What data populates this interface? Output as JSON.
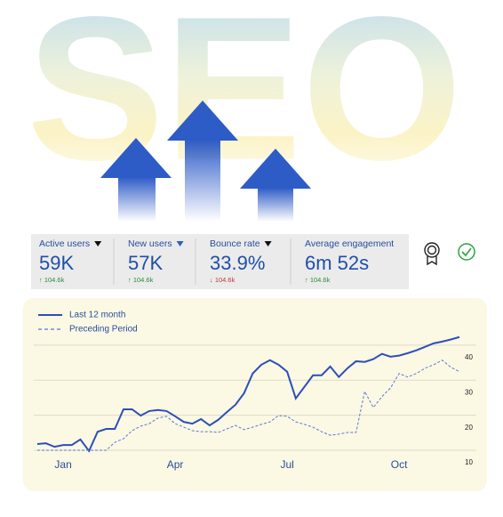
{
  "header": {
    "title": "SEO"
  },
  "metrics": [
    {
      "label": "Active users",
      "value": "59K",
      "change": "↑ 104.6k",
      "trend": "up",
      "caret_color": "#111111"
    },
    {
      "label": "New users",
      "value": "57K",
      "change": "↑ 104.6k",
      "trend": "up",
      "caret_color": "#2f5fc9"
    },
    {
      "label": "Bounce rate",
      "value": "33.9%",
      "change": "↓ 104.6k",
      "trend": "down",
      "caret_color": "#111111"
    },
    {
      "label": "Average engagement",
      "value": "6m 52s",
      "change": "↑ 104.6k",
      "trend": "up",
      "caret_color": null
    }
  ],
  "chart_data": {
    "type": "line",
    "categories": [
      null,
      null,
      null,
      "Jan",
      null,
      null,
      null,
      null,
      null,
      null,
      null,
      null,
      null,
      null,
      null,
      null,
      "Apr",
      null,
      null,
      null,
      null,
      null,
      null,
      null,
      null,
      null,
      null,
      null,
      null,
      "Jul",
      null,
      null,
      null,
      null,
      null,
      null,
      null,
      null,
      null,
      null,
      null,
      null,
      "Oct",
      null,
      null,
      null,
      null,
      null,
      null,
      null
    ],
    "series": [
      {
        "name": "Last 12 month",
        "color": "#2d4fb8",
        "style": "solid",
        "values": [
          11.8,
          12.0,
          11.0,
          11.5,
          11.5,
          13.1,
          9.8,
          15.3,
          16.1,
          16.1,
          21.7,
          21.7,
          19.9,
          21.2,
          21.5,
          21.2,
          19.7,
          18.1,
          17.6,
          18.9,
          17.1,
          18.7,
          20.9,
          23.0,
          26.3,
          31.9,
          34.4,
          35.7,
          34.4,
          32.4,
          24.8,
          28.1,
          31.4,
          31.4,
          33.9,
          30.9,
          33.4,
          35.4,
          35.2,
          36.0,
          37.5,
          36.7,
          37.0,
          37.7,
          38.5,
          39.5,
          40.5,
          41.0,
          41.6,
          42.3
        ]
      },
      {
        "name": "Preceding Period",
        "color": "#5b78d6",
        "style": "dashed",
        "values": [
          10,
          10,
          10,
          10,
          10,
          10,
          10,
          10,
          10,
          12.3,
          13.3,
          15.6,
          16.9,
          17.6,
          19.2,
          19.7,
          17.6,
          16.6,
          15.6,
          15.3,
          15.3,
          15.1,
          16.1,
          17.1,
          15.9,
          16.6,
          17.4,
          18.1,
          19.9,
          19.7,
          18.1,
          17.4,
          16.6,
          15.3,
          14.3,
          14.6,
          15.1,
          15.1,
          26.8,
          22.2,
          25.3,
          27.8,
          31.9,
          30.9,
          31.9,
          33.4,
          34.4,
          35.7,
          33.7,
          32.4
        ]
      }
    ],
    "ylim": [
      9,
      43
    ],
    "yticks": [
      10,
      20,
      30,
      40
    ],
    "grid": true,
    "legend": "top-left"
  }
}
